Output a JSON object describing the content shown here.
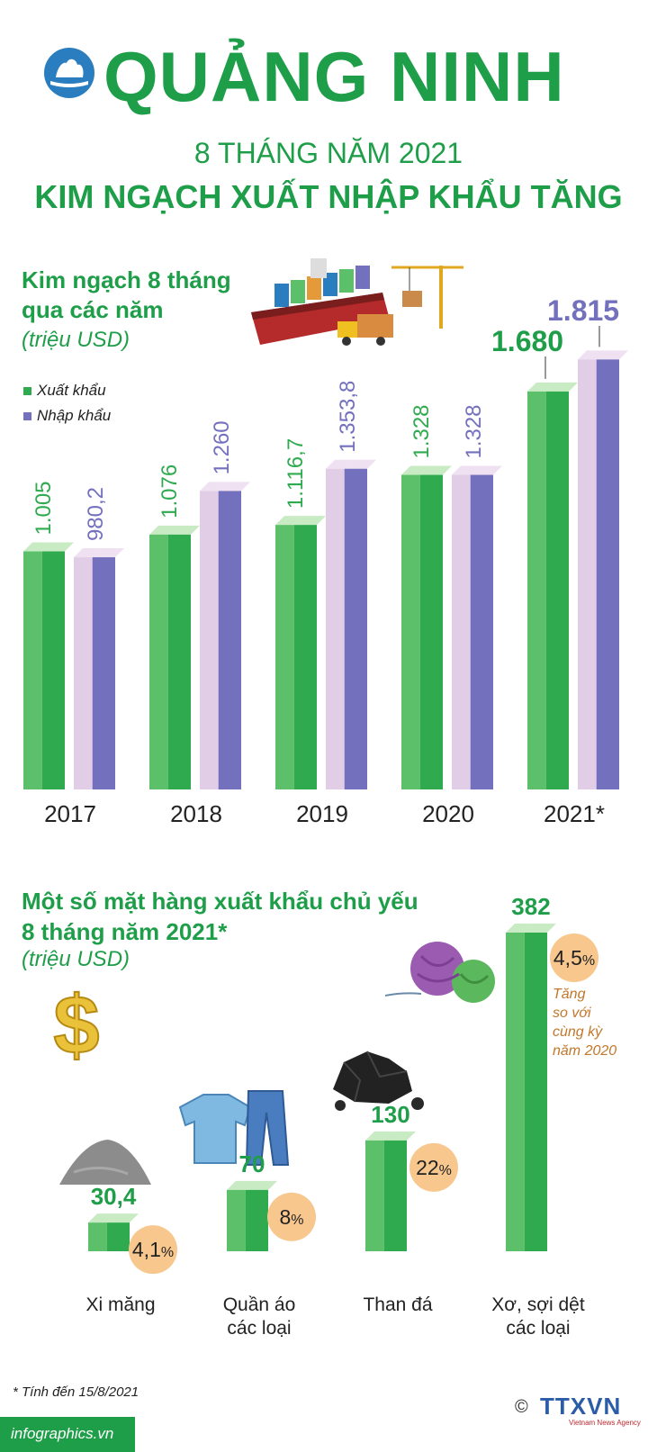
{
  "header": {
    "title": "QUẢNG NINH",
    "subtitle": "8 THÁNG NĂM 2021",
    "headline": "KIM NGẠCH XUẤT NHẬP KHẨU TĂNG"
  },
  "colors": {
    "green": "#1f9e4a",
    "bar_green": "#5cc06a",
    "bar_green_dark": "#2faa4f",
    "bar_purple_light": "#e2cde6",
    "bar_purple_dark": "#7370bd",
    "badge": "#f7c78e",
    "note": "#c2772a"
  },
  "section1": {
    "title_line1": "Kim ngạch 8 tháng",
    "title_line2": "qua các năm",
    "unit": "(triệu USD)",
    "legend": [
      {
        "label": "Xuất khẩu",
        "color": "#2faa4f"
      },
      {
        "label": "Nhập khẩu",
        "color": "#7370bd"
      }
    ]
  },
  "section2": {
    "title_line1": "Một số mặt hàng xuất khẩu chủ yếu",
    "title_line2": "8 tháng năm 2021*",
    "unit": "(triệu USD)",
    "note_lines": [
      "Tăng",
      "so với",
      "cùng kỳ",
      "năm 2020"
    ]
  },
  "footer": {
    "footnote": "* Tính đến 15/8/2021",
    "site": "infographics.vn",
    "brand": "TTXVN",
    "brand_sub": "Vietnam News Agency",
    "copyright": "©"
  },
  "chart_data": [
    {
      "type": "bar",
      "categories": [
        "2017",
        "2018",
        "2019",
        "2020",
        "2021*"
      ],
      "series": [
        {
          "name": "Xuất khẩu",
          "values": [
            1005,
            1076,
            1116.7,
            1328,
            1680
          ],
          "labels": [
            "1.005",
            "1.076",
            "1.116,7",
            "1.328",
            "1.680"
          ]
        },
        {
          "name": "Nhập khẩu",
          "values": [
            980.2,
            1260,
            1353.8,
            1328,
            1815
          ],
          "labels": [
            "980,2",
            "1.260",
            "1.353,8",
            "1.328",
            "1.815"
          ]
        }
      ],
      "ylabel": "triệu USD",
      "ylim": [
        0,
        1900
      ]
    },
    {
      "type": "bar",
      "categories": [
        "Xi măng",
        "Quần áo các loại",
        "Than đá",
        "Xơ, sợi dệt các loại"
      ],
      "category_lines": [
        [
          "Xi măng"
        ],
        [
          "Quần áo",
          "các loại"
        ],
        [
          "Than đá"
        ],
        [
          "Xơ, sợi dệt",
          "các loại"
        ]
      ],
      "values": [
        30.4,
        70,
        130,
        382
      ],
      "labels": [
        "30,4",
        "70",
        "130",
        "382"
      ],
      "growth": [
        "4,1",
        "8",
        "22",
        "4,5"
      ],
      "growth_unit": "%",
      "ylabel": "triệu USD"
    }
  ]
}
